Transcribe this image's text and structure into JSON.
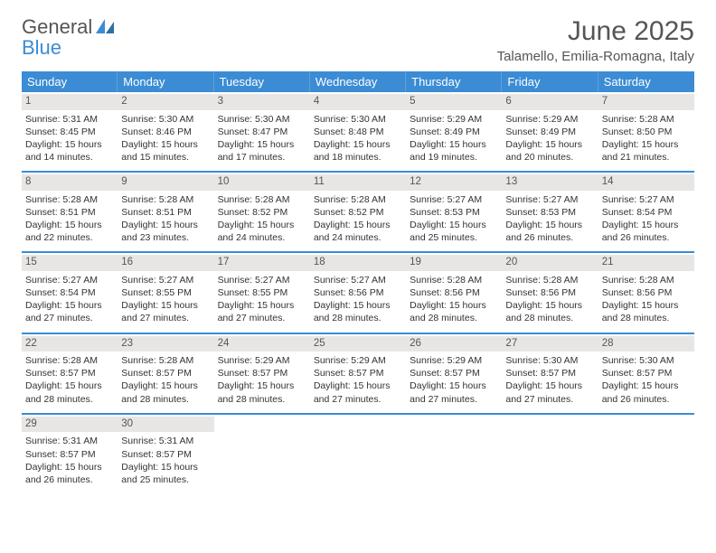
{
  "logo": {
    "line1": "General",
    "line2": "Blue"
  },
  "header": {
    "month_title": "June 2025",
    "location": "Talamello, Emilia-Romagna, Italy"
  },
  "colors": {
    "accent": "#3b8cd4",
    "daynum_bg": "#e8e6e4",
    "text": "#333333"
  },
  "day_names": [
    "Sunday",
    "Monday",
    "Tuesday",
    "Wednesday",
    "Thursday",
    "Friday",
    "Saturday"
  ],
  "labels": {
    "sunrise": "Sunrise:",
    "sunset": "Sunset:",
    "daylight": "Daylight:"
  },
  "days": [
    {
      "n": 1,
      "sunrise": "5:31 AM",
      "sunset": "8:45 PM",
      "daylight": "15 hours and 14 minutes."
    },
    {
      "n": 2,
      "sunrise": "5:30 AM",
      "sunset": "8:46 PM",
      "daylight": "15 hours and 15 minutes."
    },
    {
      "n": 3,
      "sunrise": "5:30 AM",
      "sunset": "8:47 PM",
      "daylight": "15 hours and 17 minutes."
    },
    {
      "n": 4,
      "sunrise": "5:30 AM",
      "sunset": "8:48 PM",
      "daylight": "15 hours and 18 minutes."
    },
    {
      "n": 5,
      "sunrise": "5:29 AM",
      "sunset": "8:49 PM",
      "daylight": "15 hours and 19 minutes."
    },
    {
      "n": 6,
      "sunrise": "5:29 AM",
      "sunset": "8:49 PM",
      "daylight": "15 hours and 20 minutes."
    },
    {
      "n": 7,
      "sunrise": "5:28 AM",
      "sunset": "8:50 PM",
      "daylight": "15 hours and 21 minutes."
    },
    {
      "n": 8,
      "sunrise": "5:28 AM",
      "sunset": "8:51 PM",
      "daylight": "15 hours and 22 minutes."
    },
    {
      "n": 9,
      "sunrise": "5:28 AM",
      "sunset": "8:51 PM",
      "daylight": "15 hours and 23 minutes."
    },
    {
      "n": 10,
      "sunrise": "5:28 AM",
      "sunset": "8:52 PM",
      "daylight": "15 hours and 24 minutes."
    },
    {
      "n": 11,
      "sunrise": "5:28 AM",
      "sunset": "8:52 PM",
      "daylight": "15 hours and 24 minutes."
    },
    {
      "n": 12,
      "sunrise": "5:27 AM",
      "sunset": "8:53 PM",
      "daylight": "15 hours and 25 minutes."
    },
    {
      "n": 13,
      "sunrise": "5:27 AM",
      "sunset": "8:53 PM",
      "daylight": "15 hours and 26 minutes."
    },
    {
      "n": 14,
      "sunrise": "5:27 AM",
      "sunset": "8:54 PM",
      "daylight": "15 hours and 26 minutes."
    },
    {
      "n": 15,
      "sunrise": "5:27 AM",
      "sunset": "8:54 PM",
      "daylight": "15 hours and 27 minutes."
    },
    {
      "n": 16,
      "sunrise": "5:27 AM",
      "sunset": "8:55 PM",
      "daylight": "15 hours and 27 minutes."
    },
    {
      "n": 17,
      "sunrise": "5:27 AM",
      "sunset": "8:55 PM",
      "daylight": "15 hours and 27 minutes."
    },
    {
      "n": 18,
      "sunrise": "5:27 AM",
      "sunset": "8:56 PM",
      "daylight": "15 hours and 28 minutes."
    },
    {
      "n": 19,
      "sunrise": "5:28 AM",
      "sunset": "8:56 PM",
      "daylight": "15 hours and 28 minutes."
    },
    {
      "n": 20,
      "sunrise": "5:28 AM",
      "sunset": "8:56 PM",
      "daylight": "15 hours and 28 minutes."
    },
    {
      "n": 21,
      "sunrise": "5:28 AM",
      "sunset": "8:56 PM",
      "daylight": "15 hours and 28 minutes."
    },
    {
      "n": 22,
      "sunrise": "5:28 AM",
      "sunset": "8:57 PM",
      "daylight": "15 hours and 28 minutes."
    },
    {
      "n": 23,
      "sunrise": "5:28 AM",
      "sunset": "8:57 PM",
      "daylight": "15 hours and 28 minutes."
    },
    {
      "n": 24,
      "sunrise": "5:29 AM",
      "sunset": "8:57 PM",
      "daylight": "15 hours and 28 minutes."
    },
    {
      "n": 25,
      "sunrise": "5:29 AM",
      "sunset": "8:57 PM",
      "daylight": "15 hours and 27 minutes."
    },
    {
      "n": 26,
      "sunrise": "5:29 AM",
      "sunset": "8:57 PM",
      "daylight": "15 hours and 27 minutes."
    },
    {
      "n": 27,
      "sunrise": "5:30 AM",
      "sunset": "8:57 PM",
      "daylight": "15 hours and 27 minutes."
    },
    {
      "n": 28,
      "sunrise": "5:30 AM",
      "sunset": "8:57 PM",
      "daylight": "15 hours and 26 minutes."
    },
    {
      "n": 29,
      "sunrise": "5:31 AM",
      "sunset": "8:57 PM",
      "daylight": "15 hours and 26 minutes."
    },
    {
      "n": 30,
      "sunrise": "5:31 AM",
      "sunset": "8:57 PM",
      "daylight": "15 hours and 25 minutes."
    }
  ],
  "layout": {
    "first_weekday_offset": 0,
    "total_cells": 35
  }
}
